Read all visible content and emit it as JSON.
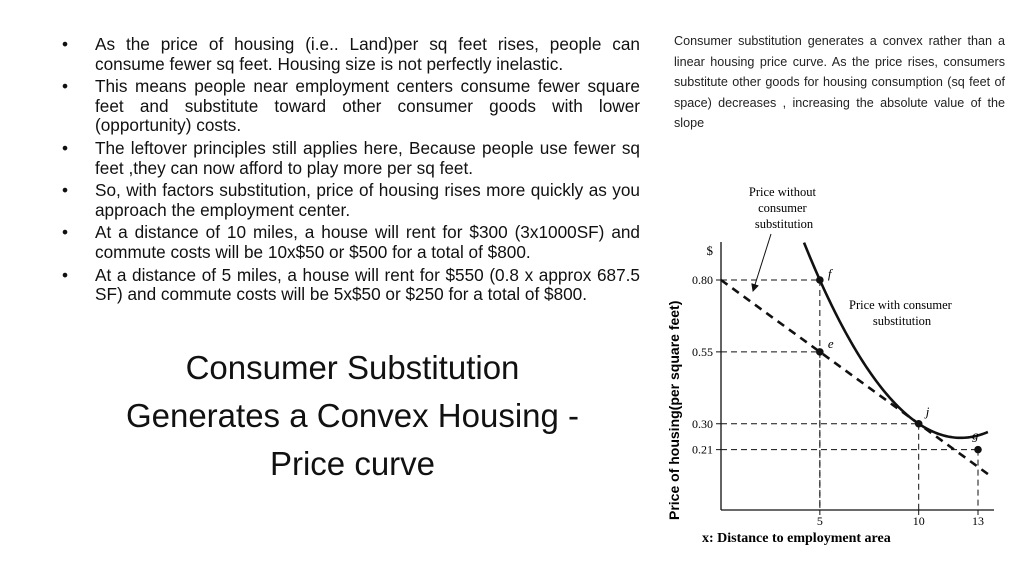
{
  "bullets": [
    "As the price of housing (i.e.. Land)per sq feet rises, people can consume fewer sq feet. Housing size is not perfectly inelastic.",
    "This means people near employment centers  consume fewer square feet and substitute toward other consumer goods with lower (opportunity) costs.",
    "The leftover principles still applies here, Because people use fewer sq feet ,they can now afford to play more per sq feet.",
    "So, with factors substitution, price of housing rises more quickly as you approach the employment center.",
    "At a distance of 10 miles, a house will rent for $300 (3x1000SF) and commute costs will be 10x$50 or $500 for a total of $800.",
    "At a distance of 5 miles, a house will rent for $550 (0.8 x approx 687.5 SF) and commute costs  will be 5x$50 or $250 for a total of $800."
  ],
  "title": {
    "line1": "Consumer Substitution",
    "line2": "Generates a Convex Housing -",
    "line3": "Price curve"
  },
  "side_note": "Consumer substitution generates a convex rather than a linear housing price curve. As the price rises, consumers substitute other goods for housing consumption (sq feet of space) decreases , increasing the absolute value of the slope",
  "figure": {
    "ylabel": "Price of housing(per square feet)",
    "xlabel": "x: Distance to employment area",
    "y_unit": "$",
    "linear_label": [
      "Price without",
      "consumer",
      "substitution"
    ],
    "convex_label": [
      "Price with consumer",
      "substitution"
    ]
  },
  "chart_data": {
    "type": "line",
    "xlabel": "x: Distance to employment area",
    "ylabel": "Price of housing(per square feet)",
    "x_ticks": [
      5,
      10,
      13
    ],
    "y_ticks": [
      "0.80",
      "0.55",
      "0.30",
      "0.21"
    ],
    "xlim": [
      0,
      13.5
    ],
    "ylim": [
      0,
      0.95
    ],
    "series": [
      {
        "name": "Price without consumer substitution",
        "style": "dashed",
        "x": [
          0,
          5,
          10,
          13.5
        ],
        "y": [
          0.8,
          0.55,
          0.3,
          0.125
        ]
      },
      {
        "name": "Price with consumer substitution",
        "style": "solid",
        "x": [
          5,
          10,
          13
        ],
        "y": [
          0.8,
          0.3,
          0.21
        ]
      }
    ],
    "points": [
      {
        "label": "f",
        "x": 5,
        "y": 0.8
      },
      {
        "label": "e",
        "x": 5,
        "y": 0.55
      },
      {
        "label": "j",
        "x": 10,
        "y": 0.3
      },
      {
        "label": "g",
        "x": 13,
        "y": 0.21
      }
    ],
    "colors": {
      "ink": "#111111"
    }
  }
}
